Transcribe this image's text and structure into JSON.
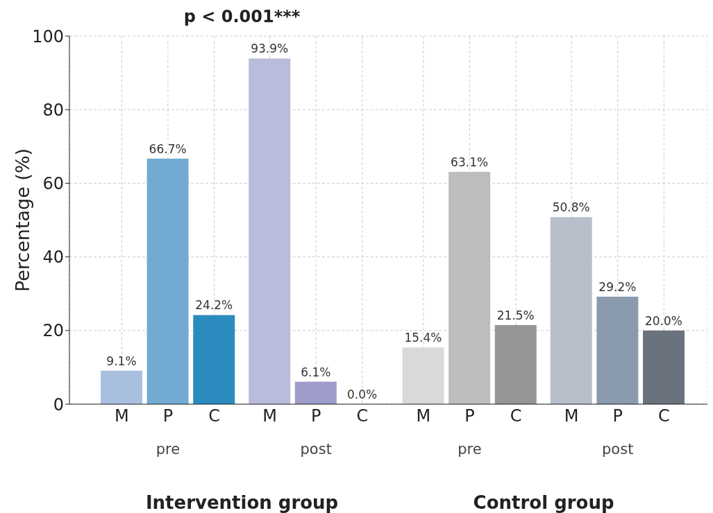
{
  "chart_data": {
    "type": "bar",
    "categories": [
      "M",
      "P",
      "C",
      "M",
      "P",
      "C",
      "M",
      "P",
      "C",
      "M",
      "P",
      "C"
    ],
    "values": [
      9.1,
      66.7,
      24.2,
      93.9,
      6.1,
      0.0,
      15.4,
      63.1,
      21.5,
      50.8,
      29.2,
      20.0
    ],
    "colors": [
      "#a9bfe0",
      "#72aad2",
      "#2b8bbf",
      "#babcdc",
      "#9e9ccb",
      "#7b72b8",
      "#d9d9d9",
      "#bdbdbd",
      "#969696",
      "#b7bfca",
      "#8a9aad",
      "#6a737d"
    ],
    "value_labels": [
      "9.1%",
      "66.7%",
      "24.2%",
      "93.9%",
      "6.1%",
      "0.0%",
      "15.4%",
      "63.1%",
      "21.5%",
      "50.8%",
      "29.2%",
      "20.0%"
    ],
    "ylabel": "Percentage (%)",
    "ylim": [
      0,
      100
    ],
    "yticks": [
      0,
      20,
      40,
      60,
      80,
      100
    ],
    "grid": true,
    "annotations": [
      "p < 0.001***",
      "pre",
      "post",
      "pre",
      "post",
      "Intervention group",
      "Control group"
    ]
  }
}
